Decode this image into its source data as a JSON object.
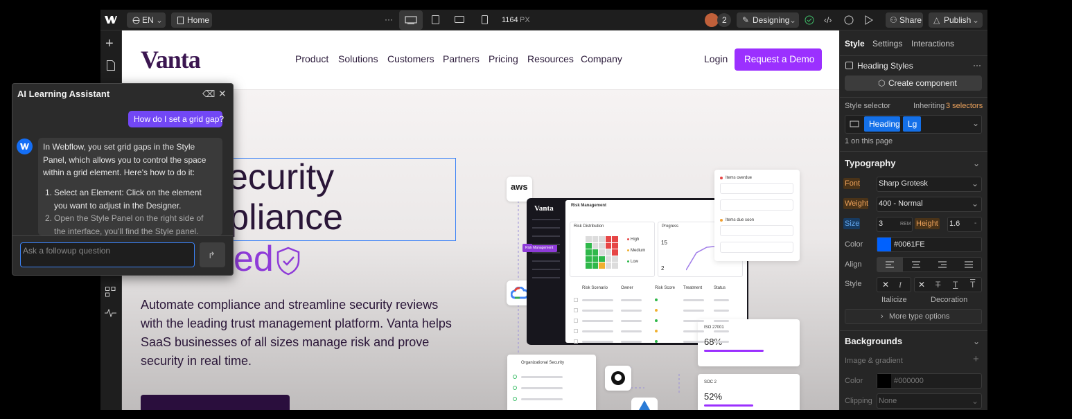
{
  "topbar": {
    "language": "EN",
    "page": "Home",
    "width": "1164",
    "unit": "PX",
    "collaborators": "2",
    "mode": "Designing",
    "share": "Share",
    "publish": "Publish"
  },
  "site": {
    "logo": "Vanta",
    "nav": [
      "Product",
      "Solutions",
      "Customers",
      "Partners",
      "Pricing",
      "Resources",
      "Company"
    ],
    "login": "Login",
    "cta": "Request a Demo",
    "hero": [
      "security",
      "ompliance",
      "ed"
    ],
    "description": "Automate compliance and streamline security reviews with the leading trust management platform. Vanta helps SaaS businesses of all sizes manage risk and prove security in real time."
  },
  "illustration": {
    "aws": "aws",
    "brand": "Vanta",
    "section": "Risk Management",
    "risk_distribution": "Risk Distribution",
    "progress": "Progress",
    "levels": [
      "High",
      "Medium",
      "Low"
    ],
    "progress_values": [
      "15",
      "2"
    ],
    "tag": "Risk Management",
    "columns": [
      "Risk Scenario",
      "Owner",
      "Risk Score",
      "Treatment",
      "Status"
    ],
    "overdue": "Items overdue",
    "due_soon": "Items due soon",
    "iso": "ISO 27001",
    "iso_value": "68%",
    "soc": "SOC 2",
    "soc_value": "52%",
    "org": "Organizational Security"
  },
  "assistant": {
    "title": "AI Learning Assistant",
    "question": "How do I set a grid gap?",
    "answer": "In Webflow, you set grid gaps in the Style Panel, which allows you to control the space within a grid element. Here's how to do it:",
    "steps": [
      "Select an Element: Click on the element you want to adjust in the Designer.",
      "Open the Style Panel on the right side of the interface, you'll find the Style panel."
    ],
    "placeholder": "Ask a followup question"
  },
  "style_panel": {
    "tabs": [
      "Style",
      "Settings",
      "Interactions"
    ],
    "heading_styles": "Heading Styles",
    "create_component": "Create component",
    "style_selector": "Style selector",
    "inheriting": "Inheriting",
    "selectors": "3 selectors",
    "chips": [
      "Heading",
      "Lg"
    ],
    "on_page": "1 on this page",
    "typography": "Typography",
    "font_label": "Font",
    "font": "Sharp Grotesk",
    "weight_label": "Weight",
    "weight": "400 - Normal",
    "size_label": "Size",
    "size": "3",
    "size_unit": "REM",
    "height_label": "Height",
    "height": "1.6",
    "height_unit": "-",
    "color_label": "Color",
    "color": "#0061FE",
    "align_label": "Align",
    "style_label": "Style",
    "italicize": "Italicize",
    "decoration": "Decoration",
    "more": "More type options",
    "backgrounds": "Backgrounds",
    "image_gradient": "Image & gradient",
    "bg_color_label": "Color",
    "bg_color": "#000000",
    "clipping_label": "Clipping",
    "clipping": "None"
  }
}
